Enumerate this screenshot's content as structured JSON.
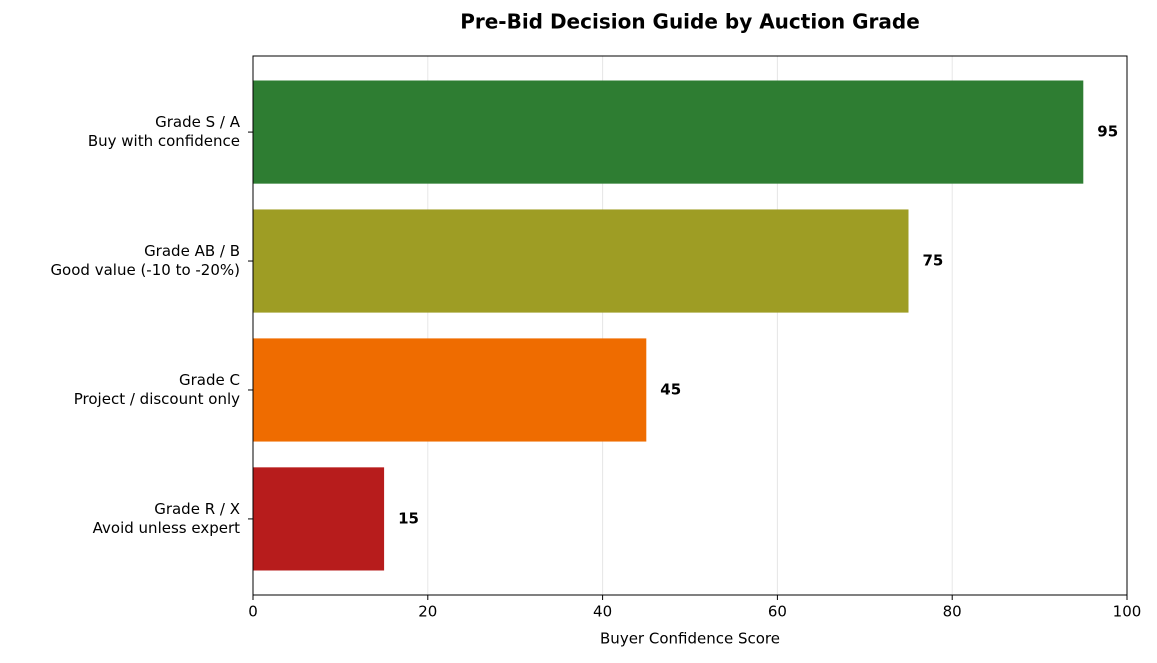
{
  "chart_data": {
    "type": "bar",
    "orientation": "horizontal",
    "title": "Pre-Bid Decision Guide by Auction Grade",
    "xlabel": "Buyer Confidence Score",
    "categories": [
      [
        "Grade S / A",
        "Buy with confidence"
      ],
      [
        "Grade AB / B",
        "Good value (-10 to -20%)"
      ],
      [
        "Grade C",
        "Project / discount only"
      ],
      [
        "Grade R / X",
        "Avoid unless expert"
      ]
    ],
    "values": [
      95,
      75,
      45,
      15
    ],
    "colors": [
      "#2e7d32",
      "#9e9d24",
      "#ef6c00",
      "#b71c1c"
    ],
    "xlim": [
      0,
      100
    ],
    "xticks": [
      0,
      20,
      40,
      60,
      80,
      100
    ],
    "grid": true
  }
}
